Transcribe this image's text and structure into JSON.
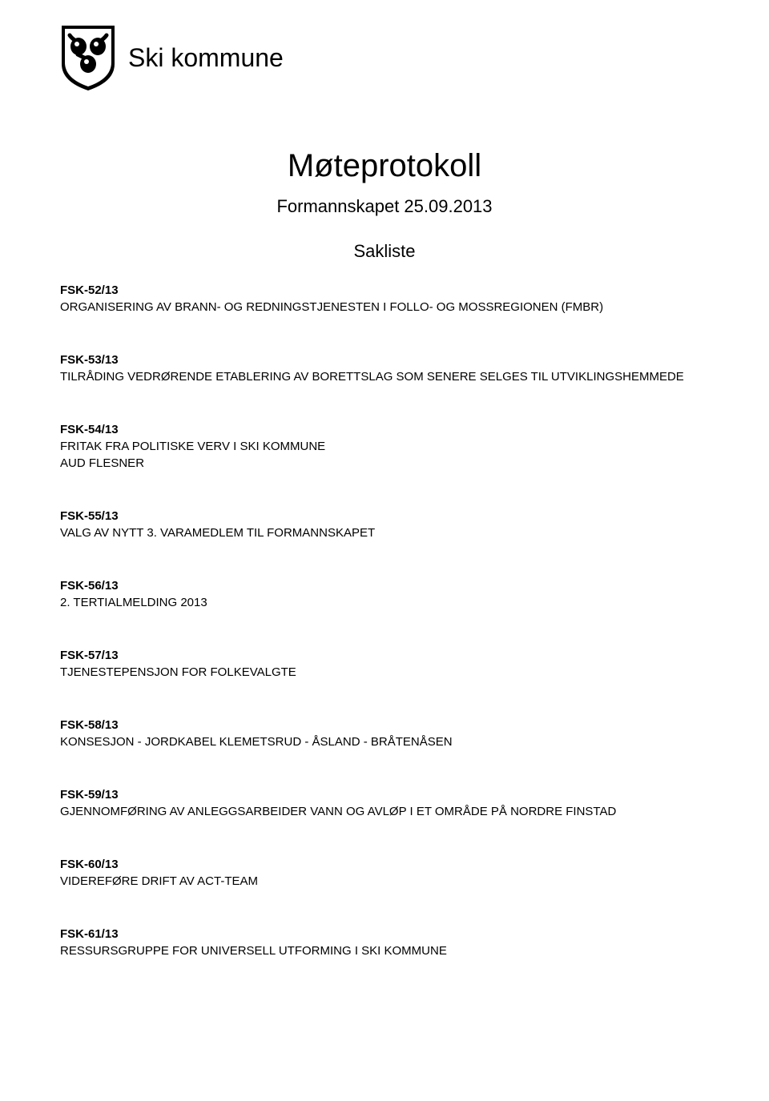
{
  "header": {
    "org_name": "Ski kommune"
  },
  "document": {
    "title": "Møteprotokoll",
    "subtitle": "Formannskapet 25.09.2013",
    "section_heading": "Sakliste"
  },
  "items": [
    {
      "code": "FSK-52/13",
      "title": "ORGANISERING AV BRANN- OG REDNINGSTJENESTEN I FOLLO- OG MOSSREGIONEN (FMBR)"
    },
    {
      "code": "FSK-53/13",
      "title": "TILRÅDING VEDRØRENDE ETABLERING AV BORETTSLAG SOM SENERE SELGES TIL UTVIKLINGSHEMMEDE"
    },
    {
      "code": "FSK-54/13",
      "title": "FRITAK FRA POLITISKE VERV I SKI KOMMUNE\nAUD FLESNER"
    },
    {
      "code": "FSK-55/13",
      "title": "VALG AV NYTT 3. VARAMEDLEM TIL FORMANNSKAPET"
    },
    {
      "code": "FSK-56/13",
      "title": "2. TERTIALMELDING 2013"
    },
    {
      "code": "FSK-57/13",
      "title": "TJENESTEPENSJON FOR FOLKEVALGTE"
    },
    {
      "code": "FSK-58/13",
      "title": "KONSESJON - JORDKABEL KLEMETSRUD - ÅSLAND - BRÅTENÅSEN"
    },
    {
      "code": "FSK-59/13",
      "title": "GJENNOMFØRING AV ANLEGGSARBEIDER VANN OG AVLØP I ET OMRÅDE PÅ NORDRE FINSTAD"
    },
    {
      "code": "FSK-60/13",
      "title": "VIDEREFØRE DRIFT AV ACT-TEAM"
    },
    {
      "code": "FSK-61/13",
      "title": "RESSURSGRUPPE FOR UNIVERSELL UTFORMING I SKI KOMMUNE"
    }
  ],
  "colors": {
    "background": "#ffffff",
    "text": "#000000"
  },
  "typography": {
    "title_fontsize": 40,
    "subtitle_fontsize": 22,
    "body_fontsize": 15,
    "org_fontsize": 32
  }
}
